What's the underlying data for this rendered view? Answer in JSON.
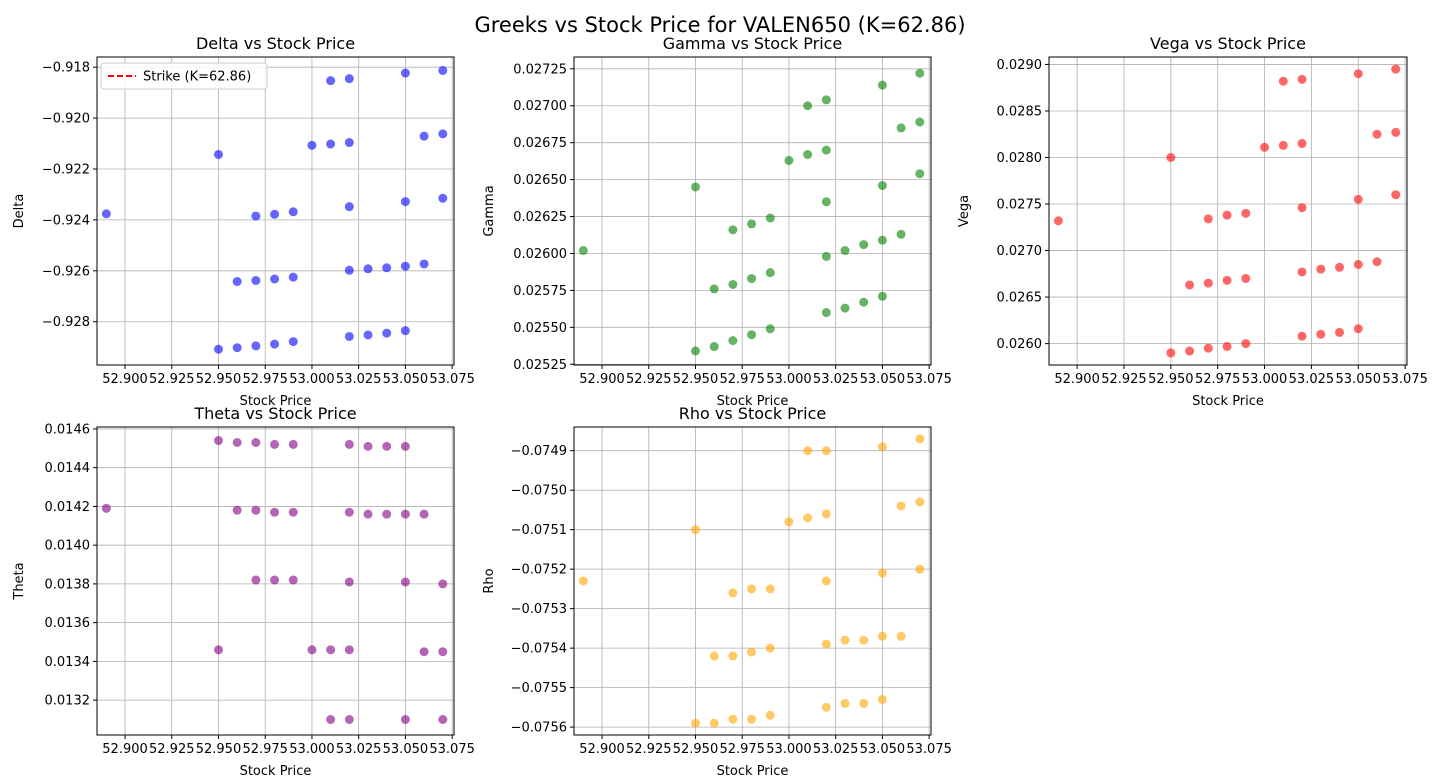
{
  "figure": {
    "suptitle": "Greeks vs Stock Price for VALEN650 (K=62.86)"
  },
  "chart_data": [
    {
      "type": "scatter",
      "title": "Delta vs Stock Price",
      "xlabel": "Stock Price",
      "ylabel": "Delta",
      "color": "#0000ff",
      "xlim": [
        52.885,
        53.076
      ],
      "ylim": [
        -0.9297,
        -0.9176
      ],
      "xticks": [
        52.9,
        52.925,
        52.95,
        52.975,
        53.0,
        53.025,
        53.05,
        53.075
      ],
      "xtick_labels": [
        "52.900",
        "52.925",
        "52.950",
        "52.975",
        "53.000",
        "53.025",
        "53.050",
        "53.075"
      ],
      "yticks": [
        -0.928,
        -0.926,
        -0.924,
        -0.922,
        -0.92,
        -0.918
      ],
      "ytick_labels": [
        "−0.928",
        "−0.926",
        "−0.924",
        "−0.922",
        "−0.920",
        "−0.918"
      ],
      "grid": true,
      "legend": {
        "position": "upper-left",
        "entries": [
          {
            "label": "Strike (K=62.86)",
            "color": "#ff0000",
            "style": "dashed"
          }
        ]
      },
      "points": [
        {
          "x": 52.89,
          "y": -0.92376
        },
        {
          "x": 52.95,
          "y": -0.92143
        },
        {
          "x": 52.96,
          "y": -0.92642
        },
        {
          "x": 52.97,
          "y": -0.92638
        },
        {
          "x": 52.97,
          "y": -0.92385
        },
        {
          "x": 52.98,
          "y": -0.92378
        },
        {
          "x": 52.99,
          "y": -0.92368
        },
        {
          "x": 52.98,
          "y": -0.92632
        },
        {
          "x": 52.99,
          "y": -0.92625
        },
        {
          "x": 52.95,
          "y": -0.92908
        },
        {
          "x": 52.96,
          "y": -0.92902
        },
        {
          "x": 52.97,
          "y": -0.92895
        },
        {
          "x": 52.98,
          "y": -0.92888
        },
        {
          "x": 52.99,
          "y": -0.92878
        },
        {
          "x": 53.0,
          "y": -0.92107
        },
        {
          "x": 53.01,
          "y": -0.92102
        },
        {
          "x": 53.02,
          "y": -0.92096
        },
        {
          "x": 53.01,
          "y": -0.91853
        },
        {
          "x": 53.02,
          "y": -0.91845
        },
        {
          "x": 53.05,
          "y": -0.91823
        },
        {
          "x": 53.07,
          "y": -0.91813
        },
        {
          "x": 53.06,
          "y": -0.92071
        },
        {
          "x": 53.07,
          "y": -0.92062
        },
        {
          "x": 53.02,
          "y": -0.92348
        },
        {
          "x": 53.05,
          "y": -0.92328
        },
        {
          "x": 53.07,
          "y": -0.92315
        },
        {
          "x": 53.02,
          "y": -0.92598
        },
        {
          "x": 53.03,
          "y": -0.92592
        },
        {
          "x": 53.04,
          "y": -0.92588
        },
        {
          "x": 53.05,
          "y": -0.92582
        },
        {
          "x": 53.06,
          "y": -0.92573
        },
        {
          "x": 53.02,
          "y": -0.92858
        },
        {
          "x": 53.03,
          "y": -0.92852
        },
        {
          "x": 53.04,
          "y": -0.92845
        },
        {
          "x": 53.05,
          "y": -0.92835
        }
      ]
    },
    {
      "type": "scatter",
      "title": "Gamma vs Stock Price",
      "xlabel": "Stock Price",
      "ylabel": "Gamma",
      "color": "#008000",
      "xlim": [
        52.885,
        53.076
      ],
      "ylim": [
        0.025245,
        0.02733
      ],
      "xticks": [
        52.9,
        52.925,
        52.95,
        52.975,
        53.0,
        53.025,
        53.05,
        53.075
      ],
      "xtick_labels": [
        "52.900",
        "52.925",
        "52.950",
        "52.975",
        "53.000",
        "53.025",
        "53.050",
        "53.075"
      ],
      "yticks": [
        0.02525,
        0.0255,
        0.02575,
        0.026,
        0.02625,
        0.0265,
        0.02675,
        0.027,
        0.02725
      ],
      "ytick_labels": [
        "0.02525",
        "0.02550",
        "0.02575",
        "0.02600",
        "0.02625",
        "0.02650",
        "0.02675",
        "0.02700",
        "0.02725"
      ],
      "grid": true,
      "points": [
        {
          "x": 52.89,
          "y": 0.02602
        },
        {
          "x": 52.95,
          "y": 0.02645
        },
        {
          "x": 52.96,
          "y": 0.02576
        },
        {
          "x": 52.97,
          "y": 0.02579
        },
        {
          "x": 52.97,
          "y": 0.02616
        },
        {
          "x": 52.98,
          "y": 0.0262
        },
        {
          "x": 52.99,
          "y": 0.02624
        },
        {
          "x": 52.98,
          "y": 0.02583
        },
        {
          "x": 52.99,
          "y": 0.02587
        },
        {
          "x": 52.95,
          "y": 0.02534
        },
        {
          "x": 52.96,
          "y": 0.02537
        },
        {
          "x": 52.97,
          "y": 0.02541
        },
        {
          "x": 52.98,
          "y": 0.02545
        },
        {
          "x": 52.99,
          "y": 0.02549
        },
        {
          "x": 53.0,
          "y": 0.02663
        },
        {
          "x": 53.01,
          "y": 0.02667
        },
        {
          "x": 53.02,
          "y": 0.0267
        },
        {
          "x": 53.01,
          "y": 0.027
        },
        {
          "x": 53.02,
          "y": 0.02704
        },
        {
          "x": 53.05,
          "y": 0.02714
        },
        {
          "x": 53.07,
          "y": 0.02722
        },
        {
          "x": 53.06,
          "y": 0.02685
        },
        {
          "x": 53.07,
          "y": 0.02689
        },
        {
          "x": 53.02,
          "y": 0.02635
        },
        {
          "x": 53.05,
          "y": 0.02646
        },
        {
          "x": 53.07,
          "y": 0.02654
        },
        {
          "x": 53.02,
          "y": 0.02598
        },
        {
          "x": 53.03,
          "y": 0.02602
        },
        {
          "x": 53.04,
          "y": 0.02606
        },
        {
          "x": 53.05,
          "y": 0.02609
        },
        {
          "x": 53.06,
          "y": 0.02613
        },
        {
          "x": 53.02,
          "y": 0.0256
        },
        {
          "x": 53.03,
          "y": 0.02563
        },
        {
          "x": 53.04,
          "y": 0.02567
        },
        {
          "x": 53.05,
          "y": 0.02571
        }
      ]
    },
    {
      "type": "scatter",
      "title": "Vega vs Stock Price",
      "xlabel": "Stock Price",
      "ylabel": "Vega",
      "color": "#ff0000",
      "xlim": [
        52.885,
        53.076
      ],
      "ylim": [
        0.02577,
        0.02908
      ],
      "xticks": [
        52.9,
        52.925,
        52.95,
        52.975,
        53.0,
        53.025,
        53.05,
        53.075
      ],
      "xtick_labels": [
        "52.900",
        "52.925",
        "52.950",
        "52.975",
        "53.000",
        "53.025",
        "53.050",
        "53.075"
      ],
      "yticks": [
        0.026,
        0.0265,
        0.027,
        0.0275,
        0.028,
        0.0285,
        0.029
      ],
      "ytick_labels": [
        "0.0260",
        "0.0265",
        "0.0270",
        "0.0275",
        "0.0280",
        "0.0285",
        "0.0290"
      ],
      "grid": true,
      "points": [
        {
          "x": 52.89,
          "y": 0.02732
        },
        {
          "x": 52.95,
          "y": 0.028
        },
        {
          "x": 52.96,
          "y": 0.02663
        },
        {
          "x": 52.97,
          "y": 0.02665
        },
        {
          "x": 52.97,
          "y": 0.02734
        },
        {
          "x": 52.98,
          "y": 0.02738
        },
        {
          "x": 52.99,
          "y": 0.0274
        },
        {
          "x": 52.98,
          "y": 0.02668
        },
        {
          "x": 52.99,
          "y": 0.0267
        },
        {
          "x": 52.95,
          "y": 0.0259
        },
        {
          "x": 52.96,
          "y": 0.02592
        },
        {
          "x": 52.97,
          "y": 0.02595
        },
        {
          "x": 52.98,
          "y": 0.02597
        },
        {
          "x": 52.99,
          "y": 0.026
        },
        {
          "x": 53.0,
          "y": 0.02811
        },
        {
          "x": 53.01,
          "y": 0.02813
        },
        {
          "x": 53.02,
          "y": 0.02815
        },
        {
          "x": 53.01,
          "y": 0.02882
        },
        {
          "x": 53.02,
          "y": 0.02884
        },
        {
          "x": 53.05,
          "y": 0.0289
        },
        {
          "x": 53.07,
          "y": 0.02895
        },
        {
          "x": 53.06,
          "y": 0.02825
        },
        {
          "x": 53.07,
          "y": 0.02827
        },
        {
          "x": 53.02,
          "y": 0.02746
        },
        {
          "x": 53.05,
          "y": 0.02755
        },
        {
          "x": 53.07,
          "y": 0.0276
        },
        {
          "x": 53.02,
          "y": 0.02677
        },
        {
          "x": 53.03,
          "y": 0.0268
        },
        {
          "x": 53.04,
          "y": 0.02682
        },
        {
          "x": 53.05,
          "y": 0.02685
        },
        {
          "x": 53.06,
          "y": 0.02688
        },
        {
          "x": 53.02,
          "y": 0.02608
        },
        {
          "x": 53.03,
          "y": 0.0261
        },
        {
          "x": 53.04,
          "y": 0.02612
        },
        {
          "x": 53.05,
          "y": 0.02616
        }
      ]
    },
    {
      "type": "scatter",
      "title": "Theta vs Stock Price",
      "xlabel": "Stock Price",
      "ylabel": "Theta",
      "color": "#800080",
      "xlim": [
        52.885,
        53.076
      ],
      "ylim": [
        0.01302,
        0.01461
      ],
      "xticks": [
        52.9,
        52.925,
        52.95,
        52.975,
        53.0,
        53.025,
        53.05,
        53.075
      ],
      "xtick_labels": [
        "52.900",
        "52.925",
        "52.950",
        "52.975",
        "53.000",
        "53.025",
        "53.050",
        "53.075"
      ],
      "yticks": [
        0.0132,
        0.0134,
        0.0136,
        0.0138,
        0.014,
        0.0142,
        0.0144,
        0.0146
      ],
      "ytick_labels": [
        "0.0132",
        "0.0134",
        "0.0136",
        "0.0138",
        "0.0140",
        "0.0142",
        "0.0144",
        "0.0146"
      ],
      "grid": true,
      "points": [
        {
          "x": 52.89,
          "y": 0.01419
        },
        {
          "x": 52.95,
          "y": 0.01346
        },
        {
          "x": 52.95,
          "y": 0.01454
        },
        {
          "x": 52.96,
          "y": 0.01453
        },
        {
          "x": 52.97,
          "y": 0.01453
        },
        {
          "x": 52.98,
          "y": 0.01452
        },
        {
          "x": 52.99,
          "y": 0.01452
        },
        {
          "x": 52.96,
          "y": 0.01418
        },
        {
          "x": 52.97,
          "y": 0.01418
        },
        {
          "x": 52.98,
          "y": 0.01417
        },
        {
          "x": 52.99,
          "y": 0.01417
        },
        {
          "x": 52.97,
          "y": 0.01382
        },
        {
          "x": 52.98,
          "y": 0.01382
        },
        {
          "x": 52.99,
          "y": 0.01382
        },
        {
          "x": 53.0,
          "y": 0.01346
        },
        {
          "x": 53.01,
          "y": 0.01346
        },
        {
          "x": 53.02,
          "y": 0.01346
        },
        {
          "x": 53.01,
          "y": 0.0131
        },
        {
          "x": 53.02,
          "y": 0.0131
        },
        {
          "x": 53.05,
          "y": 0.0131
        },
        {
          "x": 53.07,
          "y": 0.0131
        },
        {
          "x": 53.06,
          "y": 0.01345
        },
        {
          "x": 53.07,
          "y": 0.01345
        },
        {
          "x": 53.02,
          "y": 0.01381
        },
        {
          "x": 53.05,
          "y": 0.01381
        },
        {
          "x": 53.07,
          "y": 0.0138
        },
        {
          "x": 53.02,
          "y": 0.01452
        },
        {
          "x": 53.03,
          "y": 0.01451
        },
        {
          "x": 53.04,
          "y": 0.01451
        },
        {
          "x": 53.05,
          "y": 0.01451
        },
        {
          "x": 53.02,
          "y": 0.01417
        },
        {
          "x": 53.03,
          "y": 0.01416
        },
        {
          "x": 53.04,
          "y": 0.01416
        },
        {
          "x": 53.05,
          "y": 0.01416
        },
        {
          "x": 53.06,
          "y": 0.01416
        }
      ]
    },
    {
      "type": "scatter",
      "title": "Rho vs Stock Price",
      "xlabel": "Stock Price",
      "ylabel": "Rho",
      "color": "#ffa500",
      "xlim": [
        52.885,
        53.076
      ],
      "ylim": [
        -0.07562,
        -0.07484
      ],
      "xticks": [
        52.9,
        52.925,
        52.95,
        52.975,
        53.0,
        53.025,
        53.05,
        53.075
      ],
      "xtick_labels": [
        "52.900",
        "52.925",
        "52.950",
        "52.975",
        "53.000",
        "53.025",
        "53.050",
        "53.075"
      ],
      "yticks": [
        -0.0756,
        -0.0755,
        -0.0754,
        -0.0753,
        -0.0752,
        -0.0751,
        -0.075,
        -0.0749
      ],
      "ytick_labels": [
        "−0.0756",
        "−0.0755",
        "−0.0754",
        "−0.0753",
        "−0.0752",
        "−0.0751",
        "−0.0750",
        "−0.0749"
      ],
      "grid": true,
      "points": [
        {
          "x": 52.89,
          "y": -0.07523
        },
        {
          "x": 52.95,
          "y": -0.0751
        },
        {
          "x": 52.96,
          "y": -0.07542
        },
        {
          "x": 52.97,
          "y": -0.07542
        },
        {
          "x": 52.97,
          "y": -0.07526
        },
        {
          "x": 52.98,
          "y": -0.07525
        },
        {
          "x": 52.99,
          "y": -0.07525
        },
        {
          "x": 52.98,
          "y": -0.07541
        },
        {
          "x": 52.99,
          "y": -0.0754
        },
        {
          "x": 52.95,
          "y": -0.07559
        },
        {
          "x": 52.96,
          "y": -0.07559
        },
        {
          "x": 52.97,
          "y": -0.07558
        },
        {
          "x": 52.98,
          "y": -0.07558
        },
        {
          "x": 52.99,
          "y": -0.07557
        },
        {
          "x": 53.0,
          "y": -0.07508
        },
        {
          "x": 53.01,
          "y": -0.07507
        },
        {
          "x": 53.02,
          "y": -0.07506
        },
        {
          "x": 53.01,
          "y": -0.0749
        },
        {
          "x": 53.02,
          "y": -0.0749
        },
        {
          "x": 53.05,
          "y": -0.07489
        },
        {
          "x": 53.07,
          "y": -0.07487
        },
        {
          "x": 53.06,
          "y": -0.07504
        },
        {
          "x": 53.07,
          "y": -0.07503
        },
        {
          "x": 53.02,
          "y": -0.07523
        },
        {
          "x": 53.05,
          "y": -0.07521
        },
        {
          "x": 53.07,
          "y": -0.0752
        },
        {
          "x": 53.02,
          "y": -0.07539
        },
        {
          "x": 53.03,
          "y": -0.07538
        },
        {
          "x": 53.04,
          "y": -0.07538
        },
        {
          "x": 53.05,
          "y": -0.07537
        },
        {
          "x": 53.06,
          "y": -0.07537
        },
        {
          "x": 53.02,
          "y": -0.07555
        },
        {
          "x": 53.03,
          "y": -0.07554
        },
        {
          "x": 53.04,
          "y": -0.07554
        },
        {
          "x": 53.05,
          "y": -0.07553
        }
      ]
    }
  ]
}
